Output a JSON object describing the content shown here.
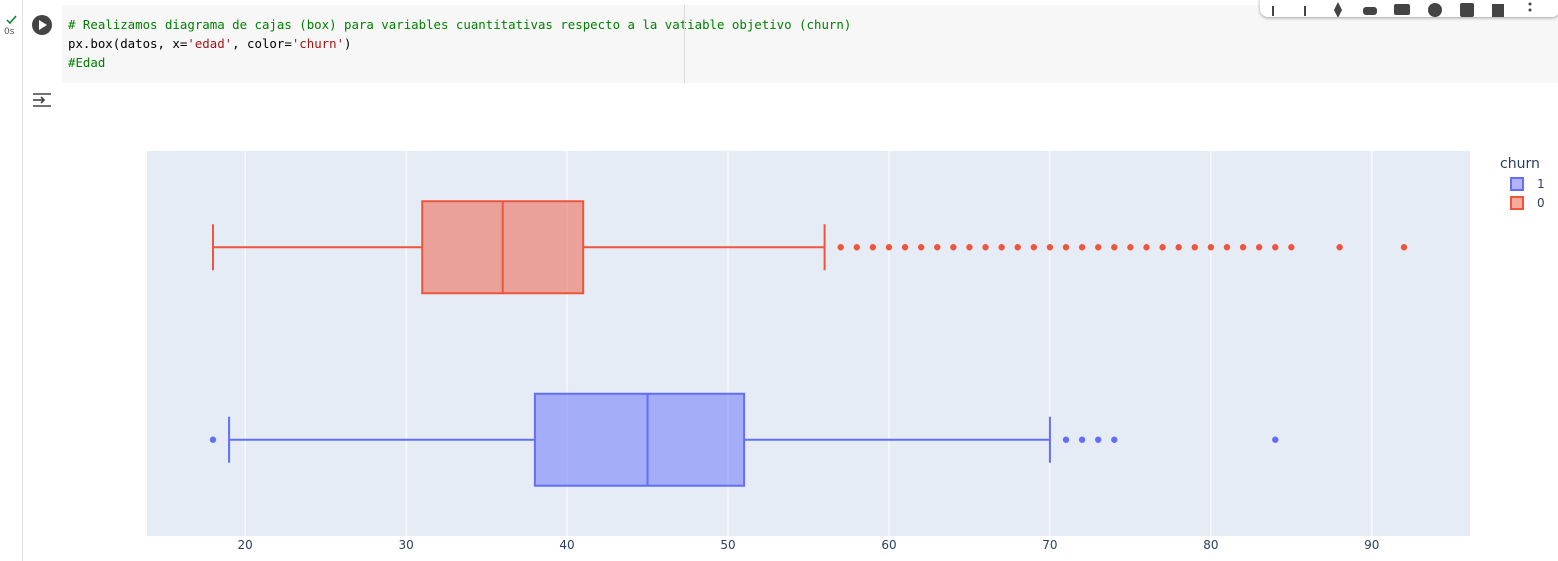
{
  "cell": {
    "status": "0s",
    "code": [
      [
        {
          "text": "# Realizamos diagrama de cajas (box) para variables cuantitativas respecto a la vatiable objetivo (churn)",
          "color": "#008000"
        }
      ],
      [
        {
          "text": "px.box(datos, x=",
          "color": "#000000"
        },
        {
          "text": "'edad'",
          "color": "#a31515"
        },
        {
          "text": ", color=",
          "color": "#000000"
        },
        {
          "text": "'churn'",
          "color": "#a31515"
        },
        {
          "text": ")",
          "color": "#000000"
        }
      ],
      [
        {
          "text": "#Edad",
          "color": "#008000"
        }
      ]
    ]
  },
  "chart_data": {
    "type": "box",
    "legend_title": "churn",
    "orientation": "horizontal",
    "xlim": [
      13.9,
      96.1
    ],
    "xticks": [
      20,
      30,
      40,
      50,
      60,
      70,
      80,
      90
    ],
    "grid": true,
    "plot_bgcolor": "#e5ecf6",
    "series": [
      {
        "name": "1",
        "color": "#636efa",
        "lower_fence": 19,
        "q1": 38,
        "median": 45,
        "q3": 51,
        "upper_fence": 70,
        "outliers": [
          18,
          71,
          72,
          73,
          74,
          84
        ]
      },
      {
        "name": "0",
        "color": "#ef553b",
        "lower_fence": 18,
        "q1": 31,
        "median": 36,
        "q3": 41,
        "upper_fence": 56,
        "outliers": [
          57,
          58,
          59,
          60,
          61,
          62,
          63,
          64,
          65,
          66,
          67,
          68,
          69,
          70,
          71,
          72,
          73,
          74,
          75,
          76,
          77,
          78,
          79,
          80,
          81,
          82,
          83,
          84,
          85,
          88,
          92
        ]
      }
    ]
  }
}
